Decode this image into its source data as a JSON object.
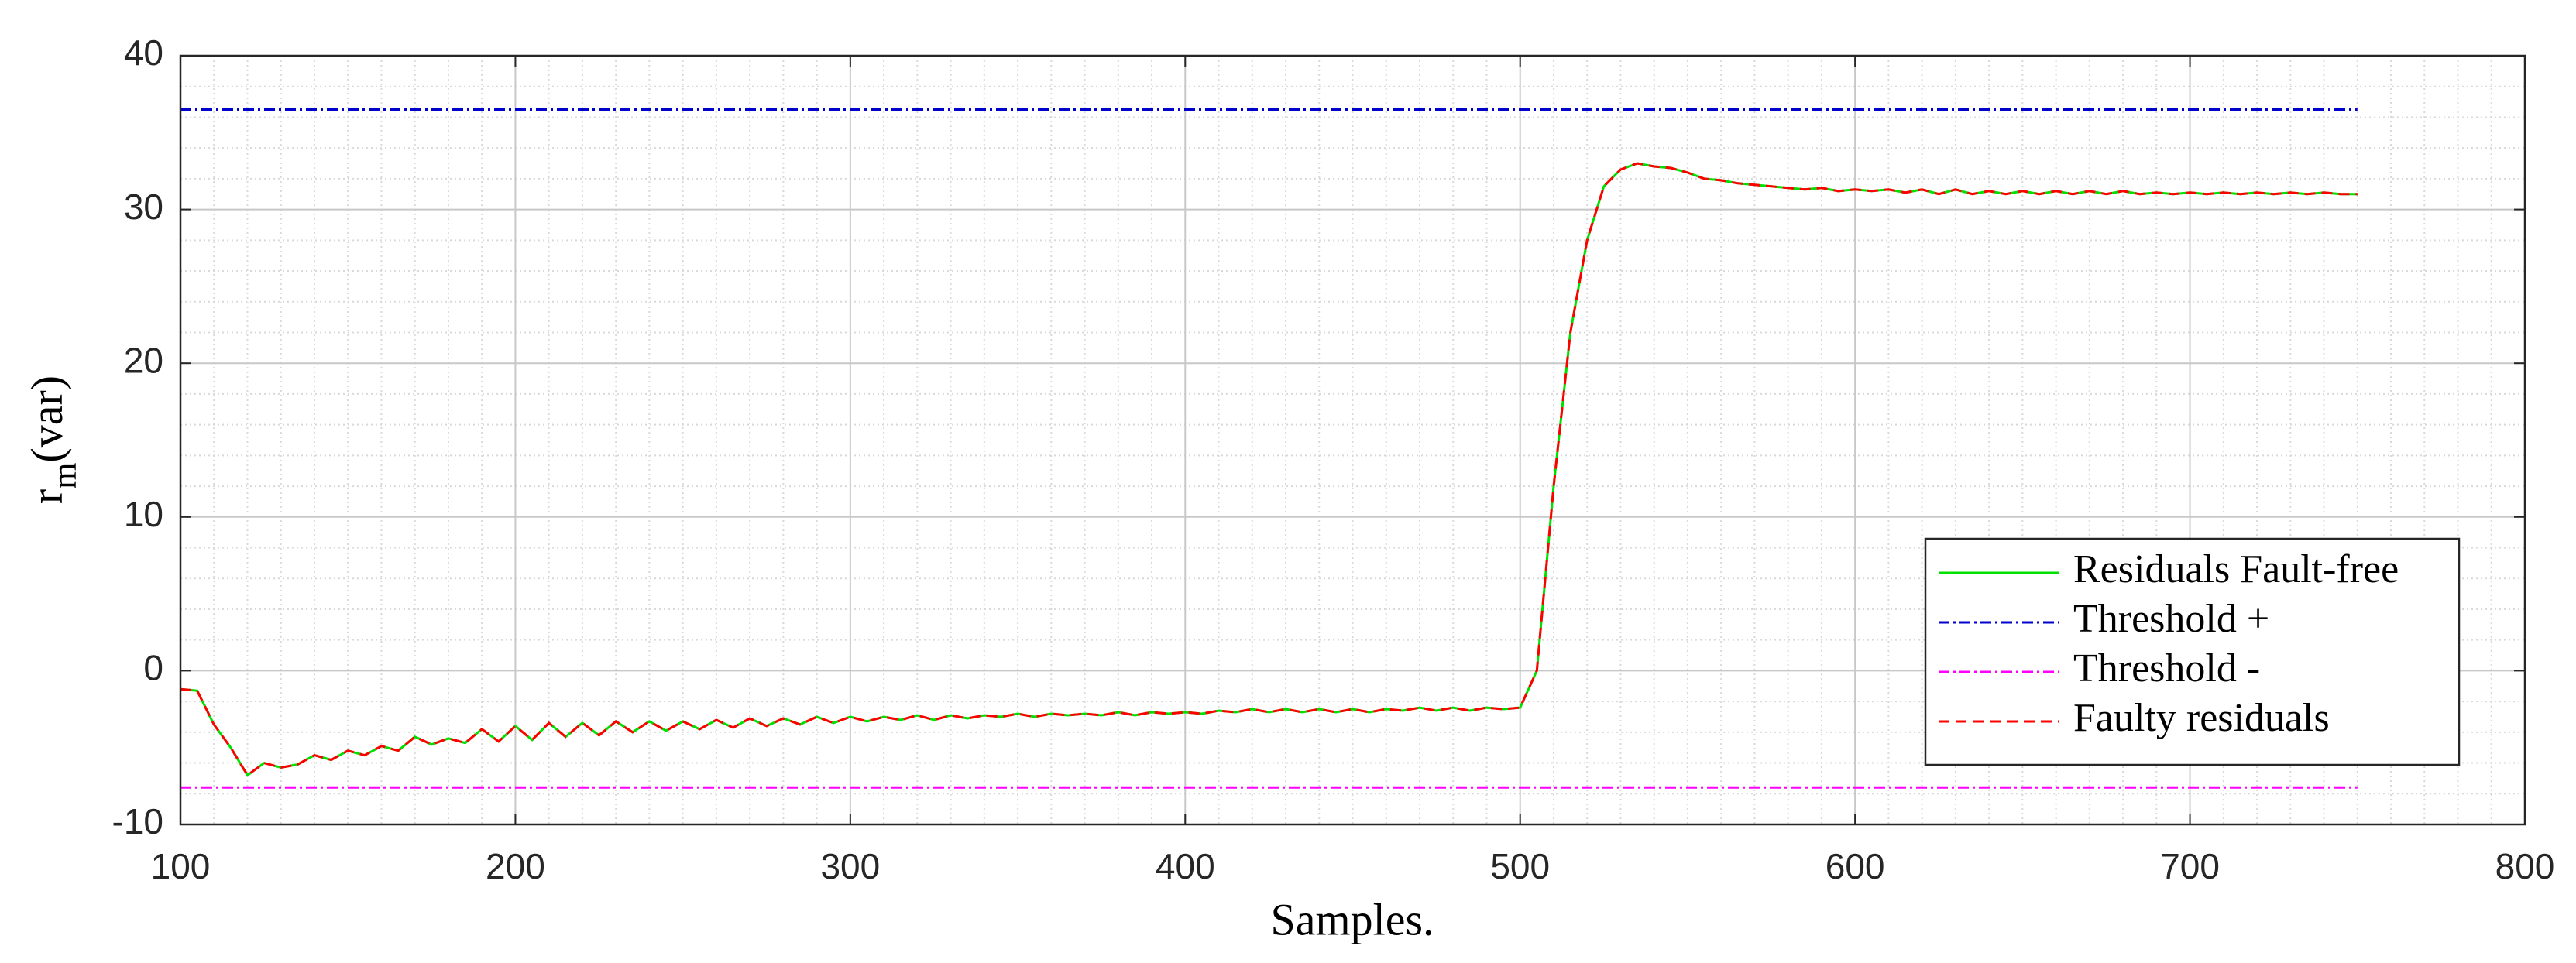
{
  "chart_data": {
    "type": "line",
    "xlabel": "Samples.",
    "ylabel_base": "r",
    "ylabel_sub": "m",
    "ylabel_rest": "(var)",
    "xlim": [
      100,
      800
    ],
    "xticks": [
      100,
      200,
      300,
      400,
      500,
      600,
      700,
      800
    ],
    "ylim": [
      -10,
      40
    ],
    "yticks": [
      -10,
      0,
      10,
      20,
      30,
      40
    ],
    "grid": true,
    "minor_grid": true,
    "legend": "right",
    "series": [
      {
        "name": "Residuals Fault-free",
        "color": "#00e000",
        "dash": "solid",
        "x": [
          100,
          105,
          110,
          115,
          120,
          125,
          130,
          135,
          140,
          145,
          150,
          155,
          160,
          165,
          170,
          175,
          180,
          185,
          190,
          195,
          200,
          205,
          210,
          215,
          220,
          225,
          230,
          235,
          240,
          245,
          250,
          255,
          260,
          265,
          270,
          275,
          280,
          285,
          290,
          295,
          300,
          305,
          310,
          315,
          320,
          325,
          330,
          335,
          340,
          345,
          350,
          355,
          360,
          365,
          370,
          375,
          380,
          385,
          390,
          395,
          400,
          405,
          410,
          415,
          420,
          425,
          430,
          435,
          440,
          445,
          450,
          455,
          460,
          465,
          470,
          475,
          480,
          485,
          490,
          495,
          500,
          505,
          510,
          515,
          520,
          525,
          530,
          535,
          540,
          545,
          550,
          555,
          560,
          565,
          570,
          575,
          580,
          585,
          590,
          595,
          600,
          605,
          610,
          615,
          620,
          625,
          630,
          635,
          640,
          645,
          650,
          655,
          660,
          665,
          670,
          675,
          680,
          685,
          690,
          695,
          700,
          705,
          710,
          715,
          720,
          725,
          730,
          735,
          740,
          745,
          750
        ],
        "values": [
          -1.2,
          -1.3,
          -3.5,
          -5,
          -6.8,
          -6,
          -6.3,
          -6.1,
          -5.5,
          -5.8,
          -5.2,
          -5.5,
          -4.9,
          -5.2,
          -4.3,
          -4.8,
          -4.4,
          -4.7,
          -3.8,
          -4.6,
          -3.6,
          -4.5,
          -3.4,
          -4.3,
          -3.4,
          -4.2,
          -3.3,
          -4.0,
          -3.3,
          -3.9,
          -3.3,
          -3.8,
          -3.2,
          -3.7,
          -3.1,
          -3.6,
          -3.1,
          -3.5,
          -3.0,
          -3.4,
          -3.0,
          -3.3,
          -3.0,
          -3.2,
          -2.9,
          -3.2,
          -2.9,
          -3.1,
          -2.9,
          -3.0,
          -2.8,
          -3.0,
          -2.8,
          -2.9,
          -2.8,
          -2.9,
          -2.7,
          -2.9,
          -2.7,
          -2.8,
          -2.7,
          -2.8,
          -2.6,
          -2.7,
          -2.5,
          -2.7,
          -2.5,
          -2.7,
          -2.5,
          -2.7,
          -2.5,
          -2.7,
          -2.5,
          -2.6,
          -2.4,
          -2.6,
          -2.4,
          -2.6,
          -2.4,
          -2.5,
          -2.4,
          0,
          12,
          22,
          28,
          31.5,
          32.6,
          33,
          32.8,
          32.7,
          32.4,
          32,
          31.9,
          31.7,
          31.6,
          31.5,
          31.4,
          31.3,
          31.4,
          31.2,
          31.3,
          31.2,
          31.3,
          31.1,
          31.3,
          31.0,
          31.3,
          31.0,
          31.2,
          31.0,
          31.2,
          31.0,
          31.2,
          31.0,
          31.2,
          31.0,
          31.2,
          31.0,
          31.1,
          31.0,
          31.1,
          31.0,
          31.1,
          31.0,
          31.1,
          31.0,
          31.1,
          31.0,
          31.1,
          31.0,
          31.0
        ]
      },
      {
        "name": "Threshold +",
        "color": "#0000cc",
        "dash": "dashdot",
        "x": [
          100,
          750
        ],
        "values": [
          36.5,
          36.5
        ]
      },
      {
        "name": "Threshold -",
        "color": "#ff00ff",
        "dash": "dashdot",
        "x": [
          100,
          750
        ],
        "values": [
          -7.6,
          -7.6
        ]
      },
      {
        "name": "Faulty residuals",
        "color": "#ff0000",
        "dash": "dashed",
        "x": [
          100,
          105,
          110,
          115,
          120,
          125,
          130,
          135,
          140,
          145,
          150,
          155,
          160,
          165,
          170,
          175,
          180,
          185,
          190,
          195,
          200,
          205,
          210,
          215,
          220,
          225,
          230,
          235,
          240,
          245,
          250,
          255,
          260,
          265,
          270,
          275,
          280,
          285,
          290,
          295,
          300,
          305,
          310,
          315,
          320,
          325,
          330,
          335,
          340,
          345,
          350,
          355,
          360,
          365,
          370,
          375,
          380,
          385,
          390,
          395,
          400,
          405,
          410,
          415,
          420,
          425,
          430,
          435,
          440,
          445,
          450,
          455,
          460,
          465,
          470,
          475,
          480,
          485,
          490,
          495,
          500,
          505,
          510,
          515,
          520,
          525,
          530,
          535,
          540,
          545,
          550,
          555,
          560,
          565,
          570,
          575,
          580,
          585,
          590,
          595,
          600,
          605,
          610,
          615,
          620,
          625,
          630,
          635,
          640,
          645,
          650,
          655,
          660,
          665,
          670,
          675,
          680,
          685,
          690,
          695,
          700,
          705,
          710,
          715,
          720,
          725,
          730,
          735,
          740,
          745,
          750
        ],
        "values": [
          -1.2,
          -1.3,
          -3.5,
          -5,
          -6.8,
          -6,
          -6.3,
          -6.1,
          -5.5,
          -5.8,
          -5.2,
          -5.5,
          -4.9,
          -5.2,
          -4.3,
          -4.8,
          -4.4,
          -4.7,
          -3.8,
          -4.6,
          -3.6,
          -4.5,
          -3.4,
          -4.3,
          -3.4,
          -4.2,
          -3.3,
          -4.0,
          -3.3,
          -3.9,
          -3.3,
          -3.8,
          -3.2,
          -3.7,
          -3.1,
          -3.6,
          -3.1,
          -3.5,
          -3.0,
          -3.4,
          -3.0,
          -3.3,
          -3.0,
          -3.2,
          -2.9,
          -3.2,
          -2.9,
          -3.1,
          -2.9,
          -3.0,
          -2.8,
          -3.0,
          -2.8,
          -2.9,
          -2.8,
          -2.9,
          -2.7,
          -2.9,
          -2.7,
          -2.8,
          -2.7,
          -2.8,
          -2.6,
          -2.7,
          -2.5,
          -2.7,
          -2.5,
          -2.7,
          -2.5,
          -2.7,
          -2.5,
          -2.7,
          -2.5,
          -2.6,
          -2.4,
          -2.6,
          -2.4,
          -2.6,
          -2.4,
          -2.5,
          -2.4,
          0,
          12,
          22,
          28,
          31.5,
          32.6,
          33,
          32.8,
          32.7,
          32.4,
          32,
          31.9,
          31.7,
          31.6,
          31.5,
          31.4,
          31.3,
          31.4,
          31.2,
          31.3,
          31.2,
          31.3,
          31.1,
          31.3,
          31.0,
          31.3,
          31.0,
          31.2,
          31.0,
          31.2,
          31.0,
          31.2,
          31.0,
          31.2,
          31.0,
          31.2,
          31.0,
          31.1,
          31.0,
          31.1,
          31.0,
          31.1,
          31.0,
          31.1,
          31.0,
          31.1,
          31.0,
          31.1,
          31.0,
          31.0
        ]
      }
    ]
  }
}
